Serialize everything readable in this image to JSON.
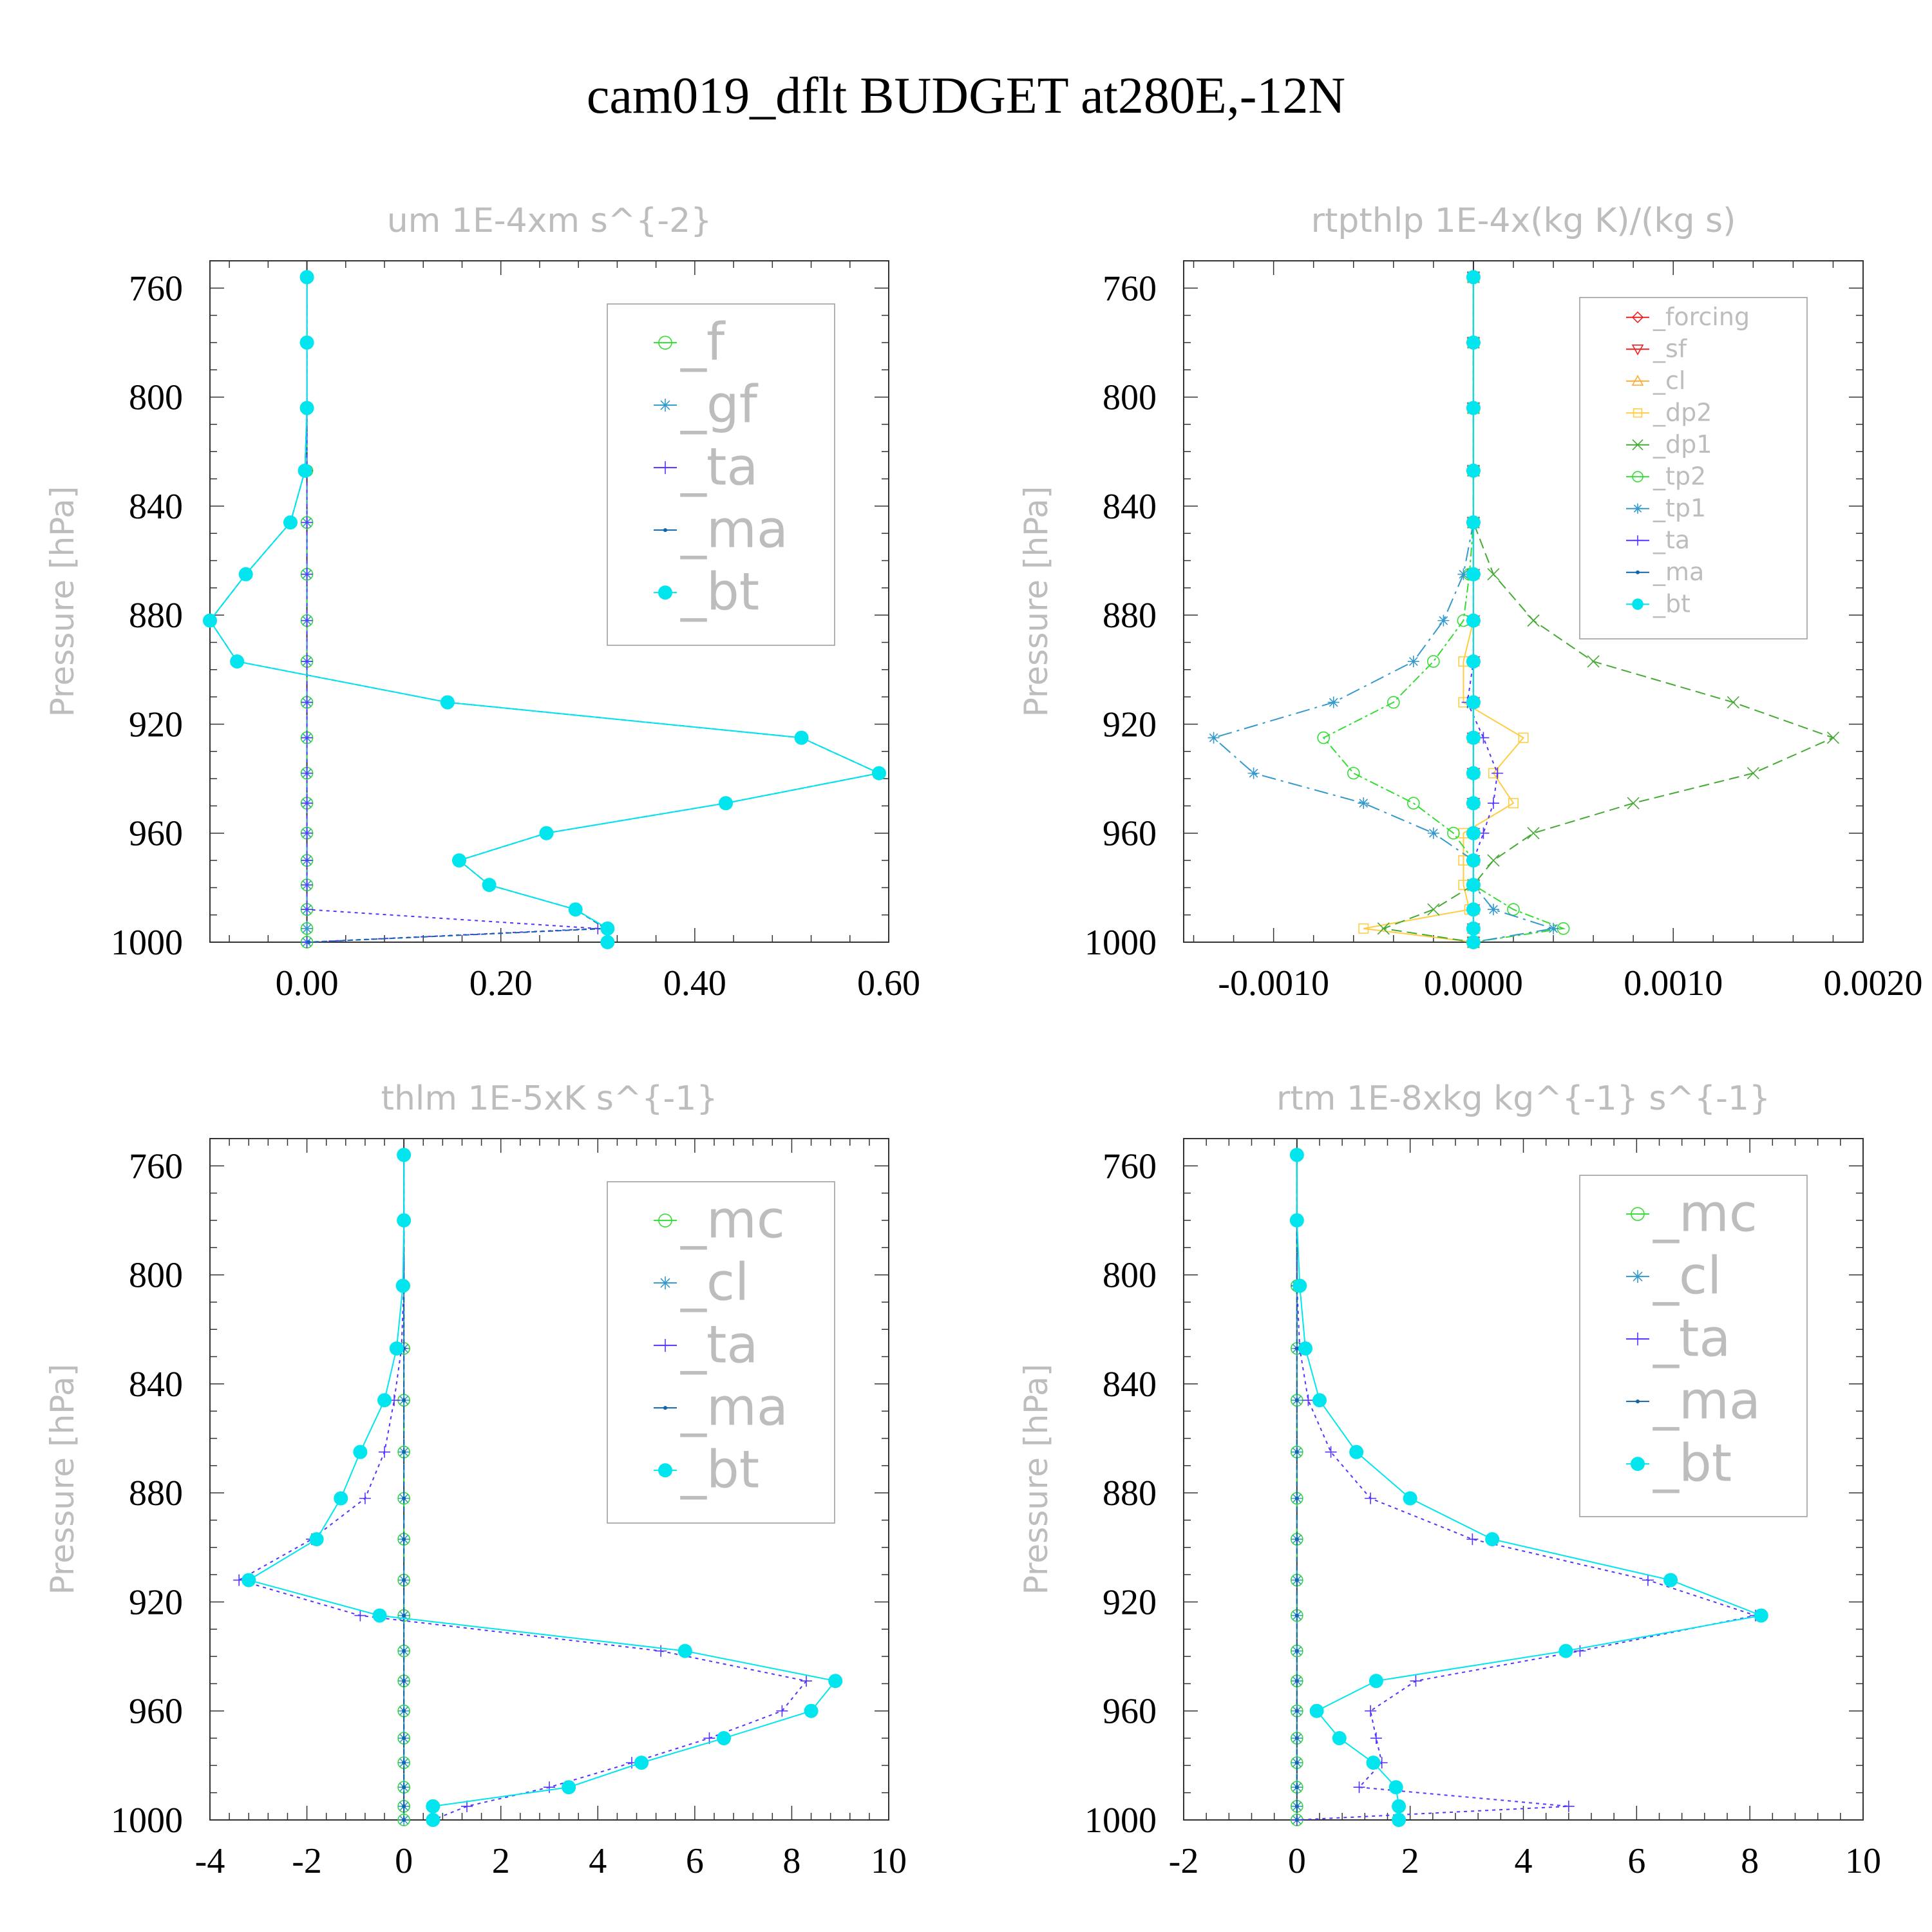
{
  "title": "cam019_dflt  BUDGET at280E,-12N",
  "chart_data": [
    {
      "type": "line",
      "title": "um   1E-4xm s^{-2}",
      "ylabel": "Pressure [hPa]",
      "xticks": [
        0,
        0.2,
        0.4,
        0.6
      ],
      "xtick_labels": [
        "0.00",
        "0.20",
        "0.40",
        "0.60"
      ],
      "xlim": [
        -0.1,
        0.6
      ],
      "ylim": [
        750,
        1000
      ],
      "yticks": [
        760,
        800,
        840,
        880,
        920,
        960,
        1000
      ],
      "ytick_labels": [
        "760",
        "800",
        "840",
        "880",
        "920",
        "960",
        "1000"
      ],
      "legend_position": "top-right",
      "levels": [
        756,
        780,
        804,
        827,
        846,
        865,
        882,
        897,
        912,
        925,
        938,
        949,
        960,
        970,
        979,
        988,
        995,
        1000
      ],
      "series": [
        {
          "name": "_f",
          "color": "#33dd33",
          "marker": "circle",
          "dash": "12,8",
          "x": [
            0,
            0,
            0,
            0,
            0,
            0,
            0,
            0,
            0,
            0,
            0,
            0,
            0,
            0,
            0,
            0,
            0,
            0
          ]
        },
        {
          "name": "_gf",
          "color": "#3399cc",
          "marker": "star",
          "dash": "20,8,4,8",
          "x": [
            0,
            0,
            0,
            0,
            0,
            0,
            0,
            0,
            0,
            0,
            0,
            0,
            0,
            0,
            0,
            0,
            0,
            0
          ]
        },
        {
          "name": "_ta",
          "color": "#5533ff",
          "marker": "plus",
          "dash": "5,6",
          "x": [
            0,
            0,
            0,
            0,
            0,
            0,
            0,
            0,
            0,
            0,
            0,
            0,
            0,
            0,
            0,
            0,
            0.3,
            0
          ]
        },
        {
          "name": "_ma",
          "color": "#1166aa",
          "marker": "dot",
          "dash": "8,5",
          "x": [
            0,
            0,
            0,
            -0.002,
            -0.017,
            -0.063,
            -0.1,
            -0.072,
            0.145,
            0.51,
            0.59,
            0.432,
            0.247,
            0.157,
            0.188,
            0.277,
            0.308,
            0.002
          ]
        },
        {
          "name": "_bt",
          "color": "#00e5ee",
          "marker": "filled",
          "dash": "none",
          "x": [
            0,
            0,
            0,
            -0.002,
            -0.017,
            -0.063,
            -0.1,
            -0.072,
            0.145,
            0.51,
            0.59,
            0.432,
            0.247,
            0.157,
            0.188,
            0.277,
            0.31,
            0.31
          ]
        }
      ]
    },
    {
      "type": "line",
      "title": "rtpthlp   1E-4x(kg K)/(kg s)",
      "ylabel": "Pressure [hPa]",
      "xticks": [
        -0.001,
        0,
        0.001,
        0.002
      ],
      "xtick_labels": [
        "-0.0010",
        "0.0000",
        "0.0010",
        "0.0020"
      ],
      "xlim": [
        -0.00145,
        0.00195
      ],
      "ylim": [
        750,
        1000
      ],
      "yticks": [
        760,
        800,
        840,
        880,
        920,
        960,
        1000
      ],
      "ytick_labels": [
        "760",
        "800",
        "840",
        "880",
        "920",
        "960",
        "1000"
      ],
      "legend_position": "top-right",
      "levels": [
        756,
        780,
        804,
        827,
        846,
        865,
        882,
        897,
        912,
        925,
        938,
        949,
        960,
        970,
        979,
        988,
        995,
        1000
      ],
      "series": [
        {
          "name": "_forcing",
          "color": "#ee2222",
          "marker": "diamond",
          "dash": "none",
          "x": [
            0,
            0,
            0,
            0,
            0,
            0,
            0,
            0,
            0,
            0,
            0,
            0,
            0,
            0,
            0,
            0,
            0,
            0
          ]
        },
        {
          "name": "_sf",
          "color": "#ee2222",
          "marker": "tridown",
          "dash": "6,5",
          "x": [
            0,
            0,
            0,
            0,
            0,
            0,
            0,
            0,
            0,
            0,
            0,
            0,
            0,
            0,
            0,
            0,
            0,
            0
          ]
        },
        {
          "name": "_cl",
          "color": "#ffaa33",
          "marker": "triup",
          "dash": "14,6",
          "x": [
            0,
            0,
            0,
            0,
            0,
            0,
            0,
            0,
            0,
            0,
            0,
            0,
            0,
            0,
            0,
            0,
            0,
            0
          ]
        },
        {
          "name": "_dp2",
          "color": "#ffcc44",
          "marker": "square",
          "dash": "none",
          "x": [
            0,
            0,
            0,
            0,
            0,
            0,
            0,
            -5e-05,
            -5e-05,
            0.00025,
            0.0001,
            0.0002,
            -5e-05,
            -5e-05,
            -5e-05,
            -2e-05,
            -0.00055,
            0
          ]
        },
        {
          "name": "_dp1",
          "color": "#44aa33",
          "marker": "cross",
          "dash": "16,8",
          "x": [
            0,
            0,
            0,
            0,
            0,
            0.0001,
            0.0003,
            0.0006,
            0.0013,
            0.0018,
            0.0014,
            0.0008,
            0.0003,
            0.0001,
            0,
            -0.0002,
            -0.00045,
            0
          ]
        },
        {
          "name": "_tp2",
          "color": "#33dd33",
          "marker": "circle",
          "dash": "14,5,4,5",
          "x": [
            0,
            0,
            0,
            0,
            0,
            -2e-05,
            -5e-05,
            -0.0002,
            -0.0004,
            -0.00075,
            -0.0006,
            -0.0003,
            -0.0001,
            0,
            0,
            0.0002,
            0.00045,
            0
          ]
        },
        {
          "name": "_tp1",
          "color": "#3399cc",
          "marker": "star",
          "dash": "22,8,4,8",
          "x": [
            0,
            0,
            0,
            0,
            0,
            -5e-05,
            -0.00015,
            -0.0003,
            -0.0007,
            -0.0013,
            -0.0011,
            -0.00055,
            -0.0002,
            0,
            0,
            0.0001,
            0.0004,
            0
          ]
        },
        {
          "name": "_ta",
          "color": "#5533ff",
          "marker": "plus",
          "dash": "5,6",
          "x": [
            0,
            0,
            0,
            0,
            0,
            0,
            0,
            0,
            -3e-05,
            5e-05,
            0.00012,
            0.0001,
            5e-05,
            0,
            0,
            0,
            0,
            0
          ]
        },
        {
          "name": "_ma",
          "color": "#1166aa",
          "marker": "dot",
          "dash": "8,5",
          "x": [
            0,
            0,
            0,
            0,
            0,
            0,
            0,
            0,
            0,
            0,
            0,
            0,
            0,
            0,
            0,
            0,
            0,
            0
          ]
        },
        {
          "name": "_bt",
          "color": "#00e5ee",
          "marker": "filled",
          "dash": "none",
          "x": [
            0,
            0,
            0,
            0,
            0,
            0,
            0,
            0,
            0,
            0,
            0,
            0,
            0,
            0,
            0,
            0,
            0,
            0
          ]
        }
      ]
    },
    {
      "type": "line",
      "title": "thlm   1E-5xK s^{-1}",
      "ylabel": "Pressure [hPa]",
      "xticks": [
        -4,
        -2,
        0,
        2,
        4,
        6,
        8,
        10
      ],
      "xtick_labels": [
        "-4",
        "-2",
        "0",
        "2",
        "4",
        "6",
        "8",
        "10"
      ],
      "xlim": [
        -4,
        10
      ],
      "ylim": [
        750,
        1000
      ],
      "yticks": [
        760,
        800,
        840,
        880,
        920,
        960,
        1000
      ],
      "ytick_labels": [
        "760",
        "800",
        "840",
        "880",
        "920",
        "960",
        "1000"
      ],
      "legend_position": "top-right",
      "levels": [
        756,
        780,
        804,
        827,
        846,
        865,
        882,
        897,
        912,
        925,
        938,
        949,
        960,
        970,
        979,
        988,
        995,
        1000
      ],
      "series": [
        {
          "name": "_mc",
          "color": "#33dd33",
          "marker": "circle",
          "dash": "12,8",
          "x": [
            0,
            0,
            0,
            0,
            0,
            0,
            0,
            0,
            0,
            0,
            0,
            0,
            0,
            0,
            0,
            0,
            0,
            0
          ]
        },
        {
          "name": "_cl",
          "color": "#3399cc",
          "marker": "star",
          "dash": "20,8,4,8",
          "x": [
            0,
            0,
            0,
            0,
            0,
            0,
            0,
            0,
            0,
            0,
            0,
            0,
            0,
            0,
            0,
            0,
            0,
            0
          ]
        },
        {
          "name": "_ta",
          "color": "#5533ff",
          "marker": "plus",
          "dash": "5,6",
          "x": [
            0,
            0,
            0,
            -0.05,
            -0.2,
            -0.4,
            -0.8,
            -1.9,
            -3.4,
            -0.9,
            5.3,
            8.3,
            7.8,
            6.3,
            4.7,
            3,
            1.3,
            0.6
          ]
        },
        {
          "name": "_ma",
          "color": "#1166aa",
          "marker": "dot",
          "dash": "8,5",
          "x": [
            0,
            0,
            0,
            0,
            0,
            0,
            0,
            0,
            0,
            0,
            0,
            0,
            0,
            0,
            0,
            0,
            0,
            0
          ]
        },
        {
          "name": "_bt",
          "color": "#00e5ee",
          "marker": "filled",
          "dash": "none",
          "x": [
            0,
            0,
            -0.02,
            -0.15,
            -0.4,
            -0.9,
            -1.3,
            -1.8,
            -3.2,
            -0.5,
            5.8,
            8.9,
            8.4,
            6.6,
            4.9,
            3.4,
            0.6,
            0.6
          ]
        }
      ]
    },
    {
      "type": "line",
      "title": "rtm   1E-8xkg kg^{-1} s^{-1}",
      "ylabel": "Pressure [hPa]",
      "xticks": [
        -2,
        0,
        2,
        4,
        6,
        8,
        10
      ],
      "xtick_labels": [
        "-2",
        "0",
        "2",
        "4",
        "6",
        "8",
        "10"
      ],
      "xlim": [
        -2,
        10
      ],
      "ylim": [
        750,
        1000
      ],
      "yticks": [
        760,
        800,
        840,
        880,
        920,
        960,
        1000
      ],
      "ytick_labels": [
        "760",
        "800",
        "840",
        "880",
        "920",
        "960",
        "1000"
      ],
      "legend_position": "top-right",
      "levels": [
        756,
        780,
        804,
        827,
        846,
        865,
        882,
        897,
        912,
        925,
        938,
        949,
        960,
        970,
        979,
        988,
        995,
        1000
      ],
      "series": [
        {
          "name": "_mc",
          "color": "#33dd33",
          "marker": "circle",
          "dash": "12,8",
          "x": [
            0,
            0,
            0,
            0,
            0,
            0,
            0,
            0,
            0,
            0,
            0,
            0,
            0,
            0,
            0,
            0,
            0,
            0
          ]
        },
        {
          "name": "_cl",
          "color": "#3399cc",
          "marker": "star",
          "dash": "20,8,4,8",
          "x": [
            0,
            0,
            0,
            0,
            0,
            0,
            0,
            0,
            0,
            0,
            0,
            0,
            0,
            0,
            0,
            0,
            0,
            0
          ]
        },
        {
          "name": "_ta",
          "color": "#5533ff",
          "marker": "plus",
          "dash": "5,6",
          "x": [
            0,
            0,
            0,
            0.05,
            0.2,
            0.6,
            1.3,
            3.1,
            6.2,
            8.1,
            5,
            2.1,
            1.3,
            1.4,
            1.5,
            1.1,
            4.8,
            0
          ]
        },
        {
          "name": "_ma",
          "color": "#1166aa",
          "marker": "dot",
          "dash": "8,5",
          "x": [
            0,
            0,
            0,
            0,
            0,
            0,
            0,
            0,
            0,
            0,
            0,
            0,
            0,
            0,
            0,
            0,
            0,
            0
          ]
        },
        {
          "name": "_bt",
          "color": "#00e5ee",
          "marker": "filled",
          "dash": "none",
          "x": [
            0,
            0,
            0.05,
            0.15,
            0.4,
            1.05,
            2,
            3.45,
            6.6,
            8.2,
            4.75,
            1.4,
            0.35,
            0.75,
            1.35,
            1.75,
            1.8,
            1.8
          ]
        }
      ]
    }
  ]
}
